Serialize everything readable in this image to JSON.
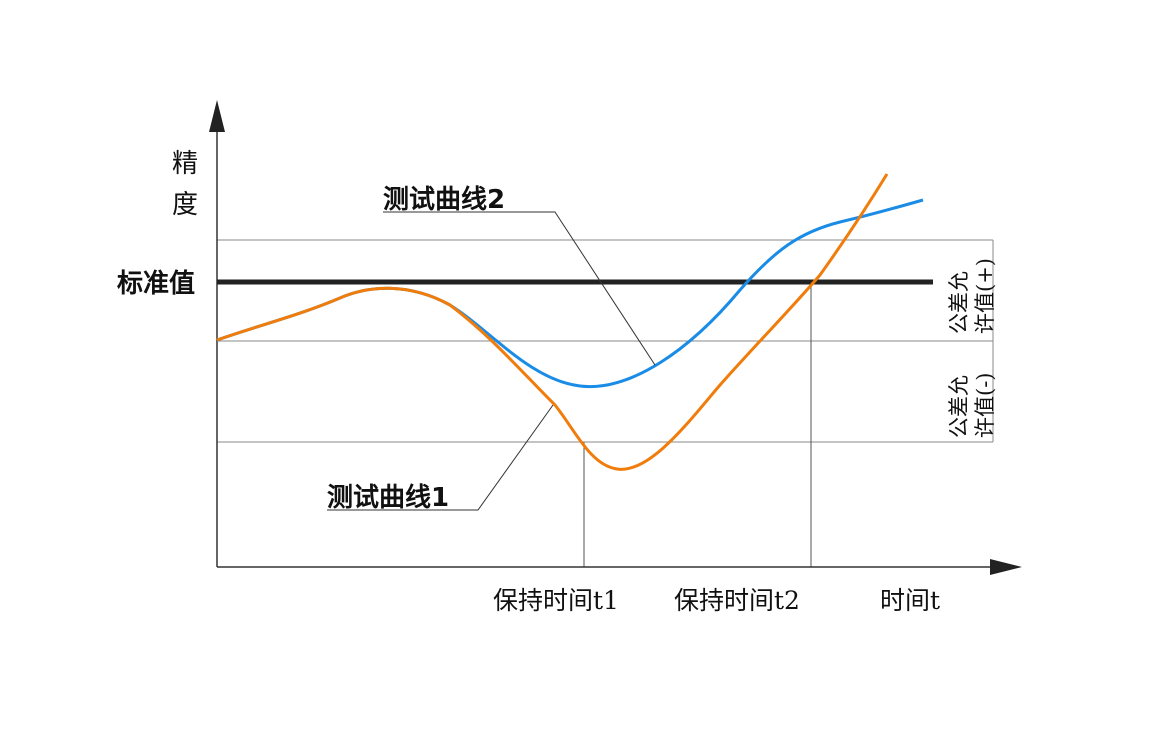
{
  "axis": {
    "y_label_line1": "精",
    "y_label_line2": "度",
    "x_label": "时间t"
  },
  "reference": {
    "standard_label": "标准值"
  },
  "tolerance": {
    "plus_line1": "公差允",
    "plus_line2": "许值(+)",
    "minus_line1": "公差允",
    "minus_line2": "许值(-)"
  },
  "hold_times": {
    "t1_label": "保持时间t1",
    "t2_label": "保持时间t2"
  },
  "curves": {
    "curve1_label": "测试曲线1",
    "curve2_label": "测试曲线2",
    "curve1_color": "#f07c0c",
    "curve2_color": "#1a8ce6",
    "standard_color": "#222222"
  }
}
